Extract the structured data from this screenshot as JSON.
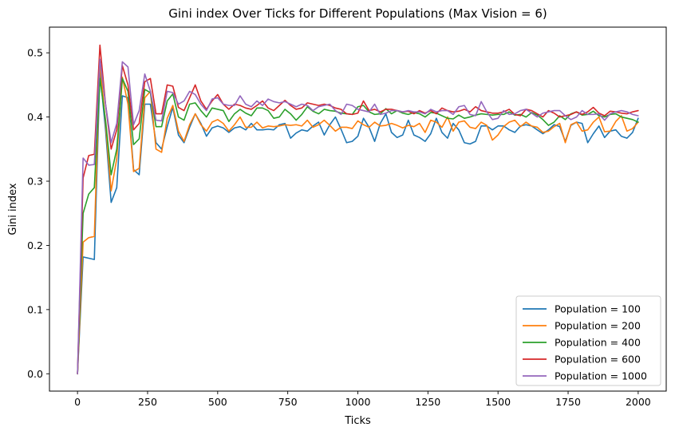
{
  "chart_data": {
    "type": "line",
    "title": "Gini index Over Ticks for Different Populations (Max Vision = 6)",
    "xlabel": "Ticks",
    "ylabel": "Gini index",
    "xlim": [
      -100,
      2100
    ],
    "ylim": [
      -0.027,
      0.54
    ],
    "xticks": [
      0,
      250,
      500,
      750,
      1000,
      1250,
      1500,
      1750,
      2000
    ],
    "yticks": [
      0.0,
      0.1,
      0.2,
      0.3,
      0.4,
      0.5
    ],
    "xtick_labels": [
      "0",
      "250",
      "500",
      "750",
      "1000",
      "1250",
      "1500",
      "1750",
      "2000"
    ],
    "ytick_labels": [
      "0.0",
      "0.1",
      "0.2",
      "0.3",
      "0.4",
      "0.5"
    ],
    "grid": false,
    "legend": "lower-right",
    "x": [
      0,
      20,
      40,
      60,
      80,
      100,
      120,
      140,
      160,
      180,
      200,
      220,
      240,
      260,
      280,
      300,
      320,
      340,
      360,
      380,
      400,
      420,
      440,
      460,
      480,
      500,
      520,
      540,
      560,
      580,
      600,
      620,
      640,
      660,
      680,
      700,
      720,
      740,
      760,
      780,
      800,
      820,
      840,
      860,
      880,
      900,
      920,
      940,
      960,
      980,
      1000,
      1020,
      1040,
      1060,
      1080,
      1100,
      1120,
      1140,
      1160,
      1180,
      1200,
      1220,
      1240,
      1260,
      1280,
      1300,
      1320,
      1340,
      1360,
      1380,
      1400,
      1420,
      1440,
      1460,
      1480,
      1500,
      1520,
      1540,
      1560,
      1580,
      1600,
      1620,
      1640,
      1660,
      1680,
      1700,
      1720,
      1740,
      1760,
      1780,
      1800,
      1820,
      1840,
      1860,
      1880,
      1900,
      1920,
      1940,
      1960,
      1980,
      2000
    ],
    "series": [
      {
        "name": "Population = 100",
        "color": "#1f77b4",
        "values": [
          0.0,
          0.182,
          0.18,
          0.178,
          0.47,
          0.38,
          0.267,
          0.29,
          0.433,
          0.43,
          0.318,
          0.31,
          0.42,
          0.42,
          0.36,
          0.35,
          0.385,
          0.415,
          0.372,
          0.36,
          0.384,
          0.405,
          0.39,
          0.37,
          0.383,
          0.386,
          0.383,
          0.376,
          0.383,
          0.385,
          0.38,
          0.39,
          0.38,
          0.38,
          0.381,
          0.38,
          0.388,
          0.39,
          0.367,
          0.375,
          0.38,
          0.378,
          0.386,
          0.392,
          0.372,
          0.388,
          0.4,
          0.381,
          0.36,
          0.362,
          0.37,
          0.398,
          0.384,
          0.362,
          0.39,
          0.405,
          0.376,
          0.368,
          0.372,
          0.395,
          0.372,
          0.368,
          0.362,
          0.374,
          0.398,
          0.376,
          0.367,
          0.39,
          0.38,
          0.36,
          0.358,
          0.362,
          0.386,
          0.386,
          0.38,
          0.386,
          0.386,
          0.38,
          0.376,
          0.386,
          0.388,
          0.386,
          0.38,
          0.374,
          0.38,
          0.388,
          0.385,
          0.362,
          0.387,
          0.392,
          0.39,
          0.36,
          0.374,
          0.386,
          0.368,
          0.378,
          0.38,
          0.37,
          0.367,
          0.376,
          0.398
        ]
      },
      {
        "name": "Population = 200",
        "color": "#ff7f0e",
        "values": [
          0.0,
          0.205,
          0.212,
          0.214,
          0.487,
          0.39,
          0.285,
          0.335,
          0.462,
          0.42,
          0.315,
          0.32,
          0.43,
          0.44,
          0.35,
          0.345,
          0.398,
          0.418,
          0.378,
          0.362,
          0.388,
          0.405,
          0.388,
          0.378,
          0.392,
          0.396,
          0.39,
          0.378,
          0.388,
          0.4,
          0.384,
          0.384,
          0.392,
          0.383,
          0.386,
          0.385,
          0.386,
          0.388,
          0.387,
          0.388,
          0.386,
          0.395,
          0.384,
          0.388,
          0.395,
          0.387,
          0.378,
          0.384,
          0.384,
          0.382,
          0.394,
          0.388,
          0.384,
          0.392,
          0.386,
          0.387,
          0.39,
          0.387,
          0.383,
          0.387,
          0.385,
          0.39,
          0.376,
          0.395,
          0.392,
          0.384,
          0.4,
          0.378,
          0.392,
          0.394,
          0.384,
          0.382,
          0.392,
          0.387,
          0.364,
          0.372,
          0.385,
          0.392,
          0.395,
          0.385,
          0.392,
          0.386,
          0.384,
          0.376,
          0.378,
          0.385,
          0.39,
          0.36,
          0.388,
          0.392,
          0.378,
          0.38,
          0.392,
          0.4,
          0.377,
          0.378,
          0.393,
          0.402,
          0.378,
          0.382,
          0.392
        ]
      },
      {
        "name": "Population = 400",
        "color": "#2ca02c",
        "values": [
          0.0,
          0.25,
          0.28,
          0.29,
          0.46,
          0.395,
          0.31,
          0.35,
          0.46,
          0.44,
          0.357,
          0.366,
          0.443,
          0.438,
          0.385,
          0.385,
          0.425,
          0.436,
          0.4,
          0.395,
          0.42,
          0.422,
          0.41,
          0.4,
          0.414,
          0.412,
          0.41,
          0.393,
          0.405,
          0.412,
          0.406,
          0.402,
          0.414,
          0.414,
          0.41,
          0.398,
          0.4,
          0.412,
          0.405,
          0.395,
          0.404,
          0.416,
          0.409,
          0.405,
          0.412,
          0.41,
          0.409,
          0.406,
          0.405,
          0.404,
          0.416,
          0.418,
          0.408,
          0.404,
          0.405,
          0.413,
          0.405,
          0.41,
          0.406,
          0.404,
          0.407,
          0.405,
          0.4,
          0.407,
          0.406,
          0.402,
          0.398,
          0.397,
          0.403,
          0.398,
          0.4,
          0.403,
          0.405,
          0.404,
          0.403,
          0.404,
          0.404,
          0.408,
          0.403,
          0.404,
          0.4,
          0.407,
          0.403,
          0.396,
          0.387,
          0.392,
          0.402,
          0.396,
          0.405,
          0.408,
          0.403,
          0.404,
          0.409,
          0.402,
          0.4,
          0.404,
          0.405,
          0.4,
          0.398,
          0.396,
          0.392
        ]
      },
      {
        "name": "Population = 600",
        "color": "#d62728",
        "values": [
          0.0,
          0.305,
          0.34,
          0.342,
          0.512,
          0.42,
          0.35,
          0.38,
          0.48,
          0.45,
          0.38,
          0.39,
          0.455,
          0.46,
          0.405,
          0.405,
          0.45,
          0.448,
          0.415,
          0.41,
          0.43,
          0.45,
          0.425,
          0.412,
          0.425,
          0.435,
          0.42,
          0.412,
          0.42,
          0.418,
          0.414,
          0.412,
          0.418,
          0.425,
          0.414,
          0.41,
          0.418,
          0.426,
          0.418,
          0.412,
          0.414,
          0.422,
          0.42,
          0.418,
          0.42,
          0.418,
          0.414,
          0.412,
          0.405,
          0.404,
          0.406,
          0.425,
          0.41,
          0.412,
          0.408,
          0.412,
          0.412,
          0.41,
          0.408,
          0.409,
          0.405,
          0.41,
          0.406,
          0.41,
          0.405,
          0.414,
          0.41,
          0.408,
          0.409,
          0.412,
          0.408,
          0.416,
          0.41,
          0.408,
          0.406,
          0.406,
          0.408,
          0.412,
          0.404,
          0.402,
          0.412,
          0.41,
          0.405,
          0.4,
          0.41,
          0.406,
          0.4,
          0.402,
          0.404,
          0.408,
          0.404,
          0.408,
          0.415,
          0.406,
          0.402,
          0.409,
          0.408,
          0.406,
          0.405,
          0.408,
          0.41
        ]
      },
      {
        "name": "Population = 1000",
        "color": "#9467bd",
        "values": [
          0.0,
          0.336,
          0.325,
          0.326,
          0.49,
          0.42,
          0.36,
          0.39,
          0.486,
          0.478,
          0.388,
          0.41,
          0.467,
          0.44,
          0.395,
          0.394,
          0.44,
          0.438,
          0.42,
          0.425,
          0.44,
          0.435,
          0.42,
          0.41,
          0.428,
          0.43,
          0.42,
          0.418,
          0.418,
          0.433,
          0.42,
          0.416,
          0.425,
          0.418,
          0.428,
          0.424,
          0.422,
          0.424,
          0.42,
          0.416,
          0.42,
          0.418,
          0.41,
          0.416,
          0.418,
          0.42,
          0.41,
          0.404,
          0.42,
          0.418,
          0.412,
          0.41,
          0.408,
          0.42,
          0.404,
          0.406,
          0.41,
          0.41,
          0.408,
          0.41,
          0.408,
          0.408,
          0.405,
          0.412,
          0.408,
          0.41,
          0.41,
          0.404,
          0.416,
          0.418,
          0.404,
          0.402,
          0.424,
          0.408,
          0.396,
          0.398,
          0.41,
          0.404,
          0.405,
          0.41,
          0.412,
          0.406,
          0.4,
          0.406,
          0.408,
          0.41,
          0.41,
          0.402,
          0.396,
          0.4,
          0.41,
          0.404,
          0.404,
          0.405,
          0.395,
          0.405,
          0.408,
          0.41,
          0.408,
          0.404,
          0.402
        ]
      }
    ]
  }
}
